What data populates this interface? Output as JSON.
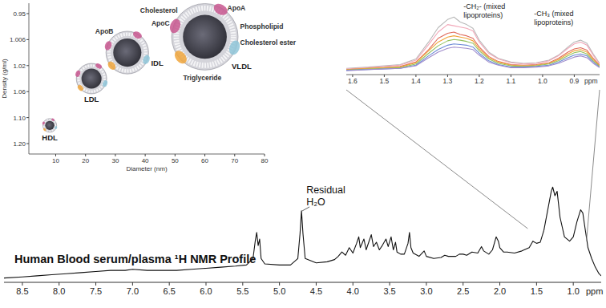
{
  "chart_data": [
    {
      "type": "line",
      "title": "Human Blood serum/plasma ¹H NMR Profile",
      "xlabel": "ppm",
      "x": [
        8.75,
        8.5,
        8.3,
        8.1,
        7.9,
        7.7,
        7.5,
        7.3,
        7.1,
        7.0,
        6.8,
        6.6,
        6.4,
        6.2,
        6.0,
        5.8,
        5.6,
        5.45,
        5.36,
        5.33,
        5.31,
        5.29,
        5.27,
        5.25,
        5.2,
        5.0,
        4.85,
        4.75,
        4.72,
        4.7,
        4.68,
        4.65,
        4.5,
        4.35,
        4.25,
        4.2,
        4.15,
        4.1,
        4.05,
        4.0,
        3.95,
        3.92,
        3.9,
        3.85,
        3.82,
        3.78,
        3.75,
        3.72,
        3.68,
        3.64,
        3.6,
        3.55,
        3.52,
        3.48,
        3.45,
        3.42,
        3.4,
        3.35,
        3.3,
        3.25,
        3.23,
        3.21,
        3.18,
        3.1,
        3.03,
        3.0,
        2.9,
        2.8,
        2.75,
        2.7,
        2.6,
        2.55,
        2.5,
        2.45,
        2.38,
        2.3,
        2.25,
        2.22,
        2.15,
        2.1,
        2.05,
        2.02,
        2.0,
        1.95,
        1.9,
        1.8,
        1.7,
        1.6,
        1.55,
        1.5,
        1.45,
        1.4,
        1.35,
        1.3,
        1.28,
        1.25,
        1.22,
        1.18,
        1.12,
        1.05,
        1.0,
        0.95,
        0.9,
        0.87,
        0.84,
        0.8,
        0.75,
        0.7,
        0.65,
        0.62
      ],
      "series": [
        {
          "color": "#111111",
          "values": [
            4,
            5,
            6,
            7,
            8,
            9,
            10,
            11,
            11,
            12,
            11,
            11,
            11,
            12,
            13,
            14,
            15,
            16,
            22,
            38,
            46,
            34,
            40,
            22,
            17,
            16,
            16,
            22,
            45,
            66,
            45,
            22,
            18,
            19,
            21,
            24,
            28,
            25,
            32,
            27,
            36,
            42,
            32,
            40,
            30,
            38,
            44,
            33,
            37,
            30,
            34,
            40,
            33,
            42,
            30,
            37,
            28,
            26,
            26,
            36,
            46,
            32,
            27,
            24,
            29,
            24,
            22,
            23,
            25,
            24,
            24,
            26,
            26,
            25,
            28,
            27,
            33,
            29,
            26,
            30,
            42,
            38,
            32,
            28,
            28,
            27,
            29,
            32,
            38,
            36,
            37,
            48,
            66,
            84,
            88,
            80,
            84,
            60,
            42,
            38,
            42,
            56,
            67,
            64,
            50,
            32,
            22,
            14,
            8,
            6
          ]
        }
      ],
      "xlim": [
        8.75,
        0.62
      ],
      "xticks": [
        8.5,
        {
          "value": 8,
          "label": "8.0"
        },
        7.5,
        {
          "value": 7,
          "label": "7.0"
        },
        6.5,
        {
          "value": 6,
          "label": "6.0"
        },
        5.5,
        {
          "value": 5,
          "label": "5.0"
        },
        4.5,
        {
          "value": 4,
          "label": "4.0"
        },
        3.5,
        {
          "value": 3,
          "label": "3.0"
        },
        2.5,
        {
          "value": 2,
          "label": "2.0"
        },
        1.5,
        {
          "value": 1,
          "label": "1.0"
        }
      ],
      "ylim": [
        0,
        100
      ],
      "tick_labels": "x",
      "grid": false,
      "annotations": [
        {
          "text": [
            "Residual",
            "H₂O"
          ],
          "x": 4.7,
          "y": 66
        }
      ]
    },
    {
      "type": "line",
      "xlabel": "ppm",
      "x": [
        1.62,
        1.55,
        1.5,
        1.45,
        1.4,
        1.36,
        1.33,
        1.3,
        1.28,
        1.26,
        1.24,
        1.22,
        1.2,
        1.17,
        1.14,
        1.1,
        1.06,
        1.02,
        0.98,
        0.95,
        0.92,
        0.9,
        0.88,
        0.86,
        0.84,
        0.82
      ],
      "series": [
        {
          "color": "#b8b8b8",
          "values": [
            10,
            12,
            14,
            16,
            25,
            52,
            75,
            88,
            92,
            84,
            80,
            74,
            55,
            36,
            26,
            20,
            18,
            19,
            23,
            31,
            44,
            52,
            55,
            50,
            33,
            18
          ]
        },
        {
          "color": "#f2a7b8",
          "values": [
            9,
            11,
            13,
            15,
            23,
            48,
            68,
            80,
            78,
            76,
            74,
            70,
            52,
            34,
            25,
            19,
            17,
            18,
            22,
            30,
            42,
            49,
            52,
            47,
            31,
            17
          ]
        },
        {
          "color": "#e06a5a",
          "values": [
            8,
            10,
            11,
            13,
            20,
            40,
            58,
            66,
            68,
            64,
            62,
            58,
            44,
            29,
            21,
            16,
            15,
            16,
            19,
            26,
            36,
            41,
            43,
            39,
            26,
            15
          ]
        },
        {
          "color": "#f0a53a",
          "values": [
            8,
            10,
            11,
            12,
            19,
            38,
            52,
            60,
            62,
            60,
            58,
            54,
            41,
            27,
            20,
            15,
            14,
            15,
            18,
            24,
            33,
            38,
            40,
            36,
            24,
            14
          ]
        },
        {
          "color": "#93c25e",
          "values": [
            7,
            9,
            10,
            11,
            17,
            34,
            46,
            54,
            56,
            55,
            53,
            50,
            38,
            25,
            18,
            14,
            13,
            14,
            17,
            22,
            30,
            35,
            37,
            33,
            22,
            13
          ]
        },
        {
          "color": "#6d8bd6",
          "values": [
            7,
            8,
            9,
            10,
            15,
            30,
            40,
            47,
            49,
            48,
            47,
            44,
            34,
            22,
            16,
            12,
            12,
            13,
            15,
            20,
            27,
            31,
            33,
            30,
            20,
            12
          ]
        },
        {
          "color": "#a08ccc",
          "values": [
            6,
            8,
            9,
            10,
            14,
            27,
            36,
            42,
            44,
            43,
            42,
            40,
            31,
            20,
            15,
            11,
            11,
            12,
            14,
            18,
            24,
            28,
            30,
            27,
            18,
            11
          ]
        }
      ],
      "xlim": [
        1.62,
        0.82
      ],
      "xticks": [
        1.6,
        1.5,
        1.4,
        1.3,
        1.2,
        1.1,
        {
          "value": 1,
          "label": "1.0"
        },
        0.9
      ],
      "ylim": [
        0,
        100
      ],
      "tick_labels": "x",
      "grid": false,
      "annotations": [
        {
          "text": [
            "-CH₂- (mixed",
            "lipoproteins)"
          ],
          "x": 1.28
        },
        {
          "text": [
            "-CH₃ (mixed",
            "lipoproteins)"
          ],
          "x": 0.88
        }
      ]
    },
    {
      "type": "bubble",
      "xlabel": "Diameter (nm)",
      "ylabel": "Density (g/ml)",
      "labels": [
        "HDL",
        "LDL",
        "IDL",
        "VLDL"
      ],
      "x": [
        8,
        22,
        34,
        60
      ],
      "values": [
        1.13,
        1.04,
        1.013,
        1.0
      ],
      "sizes": [
        8,
        22,
        34,
        60
      ],
      "xlim": [
        1,
        80
      ],
      "xticks": [
        10,
        20,
        30,
        40,
        50,
        60,
        70,
        80
      ],
      "ylim": [
        0.93,
        1.22
      ],
      "yticks": [
        0.95,
        1.006,
        1.02,
        1.06,
        {
          "value": 1.1,
          "label": "1.10"
        },
        {
          "value": 1.2,
          "label": "1.20"
        }
      ],
      "grid": false,
      "annotations": [
        "ApoA",
        "ApoC",
        "Cholesterol",
        "Phospholipid",
        "Cholesterol ester",
        "ApoB",
        "Triglyceride"
      ]
    }
  ]
}
